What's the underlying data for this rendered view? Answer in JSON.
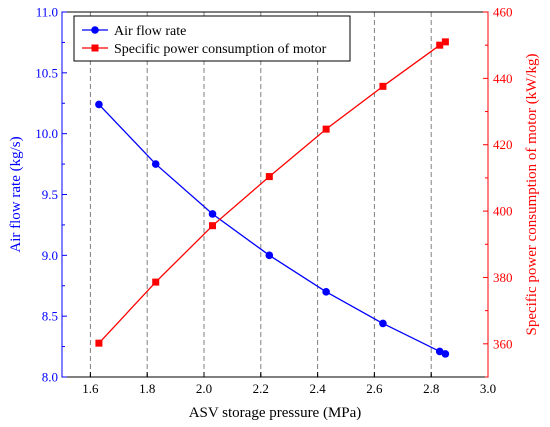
{
  "chart_data": {
    "type": "line",
    "title": "",
    "xlabel": "ASV storage pressure (MPa)",
    "xlim": [
      1.5,
      3.0
    ],
    "x_ticks": [
      1.6,
      1.8,
      2.0,
      2.2,
      2.4,
      2.6,
      2.8,
      3.0
    ],
    "x_tick_labels": [
      "1.6",
      "1.8",
      "2.0",
      "2.2",
      "2.4",
      "2.6",
      "2.8",
      "3.0"
    ],
    "y_left": {
      "label": "Air flow rate (kg/s)",
      "lim": [
        8.0,
        11.0
      ],
      "ticks": [
        8.0,
        8.5,
        9.0,
        9.5,
        10.0,
        10.5,
        11.0
      ],
      "tick_labels": [
        "8.0",
        "8.5",
        "9.0",
        "9.5",
        "10.0",
        "10.5",
        "11.0"
      ],
      "color": "#0000ff"
    },
    "y_right": {
      "label": "Specific power consumption of motor (kW/kg)",
      "lim": [
        350,
        460
      ],
      "ticks": [
        360,
        380,
        400,
        420,
        440,
        460
      ],
      "tick_labels": [
        "360",
        "380",
        "400",
        "420",
        "440",
        "460"
      ],
      "color": "#ff0000"
    },
    "vertical_gridlines": "dashed",
    "legend_position": "top-left",
    "series": [
      {
        "name": "Air flow rate",
        "axis": "left",
        "color": "#0000ff",
        "marker": "circle",
        "x": [
          1.63,
          1.83,
          2.03,
          2.23,
          2.43,
          2.63,
          2.83,
          2.85
        ],
        "y": [
          10.24,
          9.75,
          9.34,
          9.0,
          8.7,
          8.44,
          8.21,
          8.19
        ]
      },
      {
        "name": "Specific power consumption of motor",
        "axis": "right",
        "color": "#ff0000",
        "marker": "square",
        "x": [
          1.63,
          1.83,
          2.03,
          2.23,
          2.43,
          2.63,
          2.83,
          2.85
        ],
        "y": [
          360.2,
          378.6,
          395.6,
          410.4,
          424.7,
          437.6,
          450.0,
          451.0
        ]
      }
    ]
  }
}
